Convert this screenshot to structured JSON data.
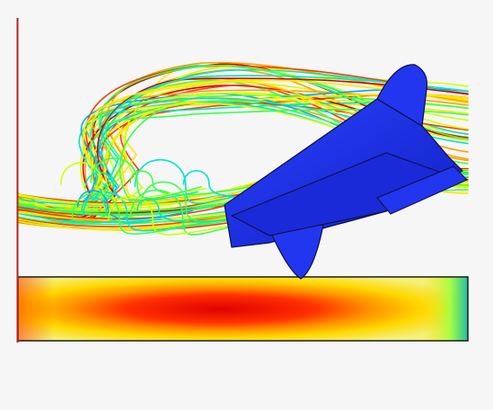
{
  "image": {
    "subject": "cfd-streamline-visualization",
    "background_color": "#f6f6f6",
    "colormap": [
      "#0019ff",
      "#00aaff",
      "#00e6c8",
      "#3cff50",
      "#d2ff00",
      "#ffe600",
      "#ffa000",
      "#ff3c00",
      "#d20000"
    ],
    "body_color": "#1a2fe0",
    "axis_line_color": "#b82020"
  }
}
